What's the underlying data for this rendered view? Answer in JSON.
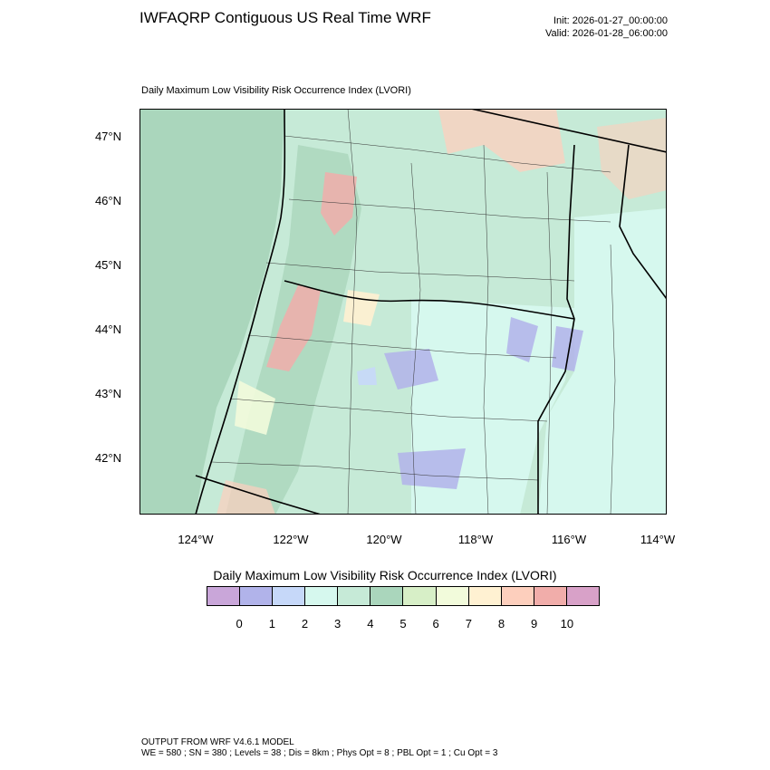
{
  "header": {
    "title": "IWFAQRP Contiguous US Real Time WRF",
    "init": "Init: 2026-01-27_00:00:00",
    "valid": "Valid: 2026-01-28_06:00:00"
  },
  "plot": {
    "title": "Daily Maximum Low Visibility Risk Occurrence Index   (LVORI)"
  },
  "axes": {
    "lat_labels": [
      "47°N",
      "46°N",
      "45°N",
      "44°N",
      "43°N",
      "42°N"
    ],
    "lon_labels": [
      "124°W",
      "122°W",
      "120°W",
      "118°W",
      "116°W",
      "114°W"
    ]
  },
  "colorbar": {
    "title": "Daily Maximum Low Visibility Risk Occurrence Index  (LVORI)",
    "labels": [
      "0",
      "1",
      "2",
      "3",
      "4",
      "5",
      "6",
      "7",
      "8",
      "9",
      "10"
    ],
    "colors": [
      "#c9a6d9",
      "#b1b3ea",
      "#c6d8f9",
      "#d6f8ee",
      "#c6ead7",
      "#aad6bc",
      "#d7efc7",
      "#f2fbdb",
      "#fff1d2",
      "#fdcfbd",
      "#f1adaa",
      "#d8a1c8"
    ]
  },
  "footer": {
    "line1": "OUTPUT FROM WRF V4.6.1 MODEL",
    "line2": "WE = 580 ; SN = 380 ; Levels = 38 ; Dis = 8km ; Phys Opt = 8 ; PBL Opt = 1 ; Cu Opt = 3"
  }
}
